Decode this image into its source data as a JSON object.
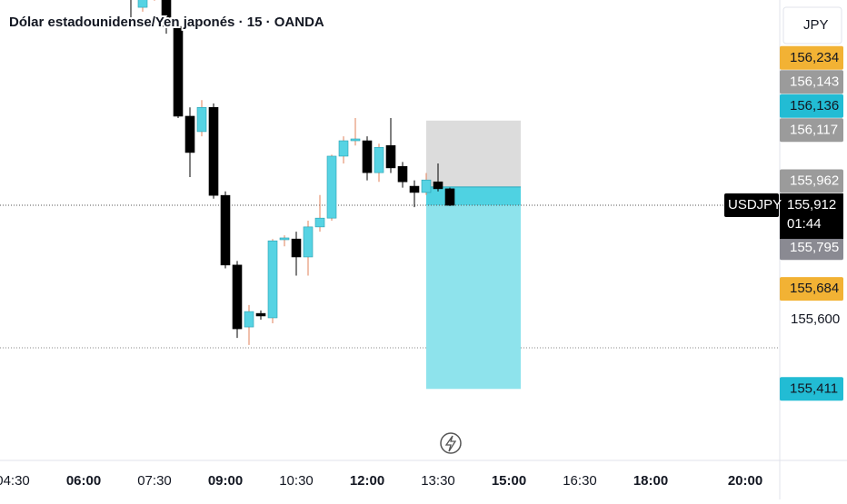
{
  "chart_data": {
    "type": "candlestick",
    "title": "Dólar estadounidense/Yen japonés · 15 · OANDA",
    "currency": "JPY",
    "symbol": "USDJPY",
    "countdown": "01:44",
    "up_color": "#56d3e3",
    "down_color": "#000000",
    "x": [
      "07:00",
      "07:15",
      "07:30",
      "07:45",
      "08:00",
      "08:15",
      "08:30",
      "08:45",
      "09:00",
      "09:15",
      "09:30",
      "09:45",
      "10:00",
      "10:15",
      "10:30",
      "10:45",
      "11:00",
      "11:15",
      "11:30",
      "11:45",
      "12:00",
      "12:15",
      "12:30",
      "12:45",
      "13:00",
      "13:15",
      "13:30",
      "13:45"
    ],
    "open": [
      156.52,
      156.452,
      156.48,
      156.5,
      156.4,
      156.155,
      156.113,
      156.179,
      155.939,
      155.749,
      155.58,
      155.617,
      155.605,
      155.818,
      155.82,
      155.771,
      155.853,
      155.877,
      156.046,
      156.088,
      156.088,
      156.001,
      156.075,
      156.018,
      155.964,
      155.947,
      155.976,
      155.957
    ],
    "high": [
      156.54,
      156.5,
      156.54,
      156.53,
      156.41,
      156.179,
      156.199,
      156.19,
      155.95,
      155.76,
      155.64,
      155.625,
      155.82,
      155.83,
      155.84,
      155.87,
      155.94,
      156.05,
      156.1,
      156.15,
      156.1,
      156.08,
      156.15,
      156.03,
      155.98,
      156.0,
      156.026,
      155.96
    ],
    "low": [
      156.42,
      156.44,
      156.47,
      156.38,
      156.15,
      155.989,
      156.1,
      155.93,
      155.74,
      155.55,
      155.531,
      155.6,
      155.59,
      155.8,
      155.72,
      155.72,
      155.84,
      155.87,
      156.026,
      156.075,
      155.98,
      155.976,
      156.0,
      155.96,
      155.907,
      155.94,
      155.95,
      155.91
    ],
    "close": [
      156.48,
      156.49,
      156.53,
      156.4,
      156.155,
      156.056,
      156.179,
      155.939,
      155.749,
      155.575,
      155.622,
      155.61,
      155.815,
      155.823,
      155.771,
      155.853,
      155.877,
      156.046,
      156.088,
      156.093,
      156.001,
      156.07,
      156.014,
      155.976,
      155.947,
      155.981,
      155.957,
      155.912
    ],
    "ylim": [
      155.216,
      156.472
    ],
    "yticks": [
      {
        "value": 155.6,
        "label": "155,600"
      }
    ],
    "xticks": [
      "04:30",
      "06:00",
      "07:30",
      "09:00",
      "10:30",
      "12:00",
      "13:30",
      "15:00",
      "16:30",
      "18:00",
      "20:00"
    ],
    "position": {
      "entry": 155.962,
      "stop": 156.143,
      "target": 155.411,
      "start": "13:15",
      "end": "15:15"
    },
    "current_price": {
      "value": 155.912,
      "label": "155,912"
    },
    "price_labels": [
      {
        "value": 156.234,
        "label": "156,234",
        "color": "#f2b234"
      },
      {
        "value": 156.143,
        "label": "156,143",
        "color": "#9b9b9b"
      },
      {
        "value": 156.136,
        "label": "156,136",
        "color": "#22bcd4"
      },
      {
        "value": 156.117,
        "label": "156,117",
        "color": "#9b9b9b"
      },
      {
        "value": 155.962,
        "label": "155,962",
        "color": "#9b9b9b"
      },
      {
        "value": 155.795,
        "label": "155,795",
        "color": "#8a8a92"
      },
      {
        "value": 155.684,
        "label": "155,684",
        "color": "#f2b234"
      },
      {
        "value": 155.411,
        "label": "155,411",
        "color": "#22bcd4"
      }
    ]
  }
}
